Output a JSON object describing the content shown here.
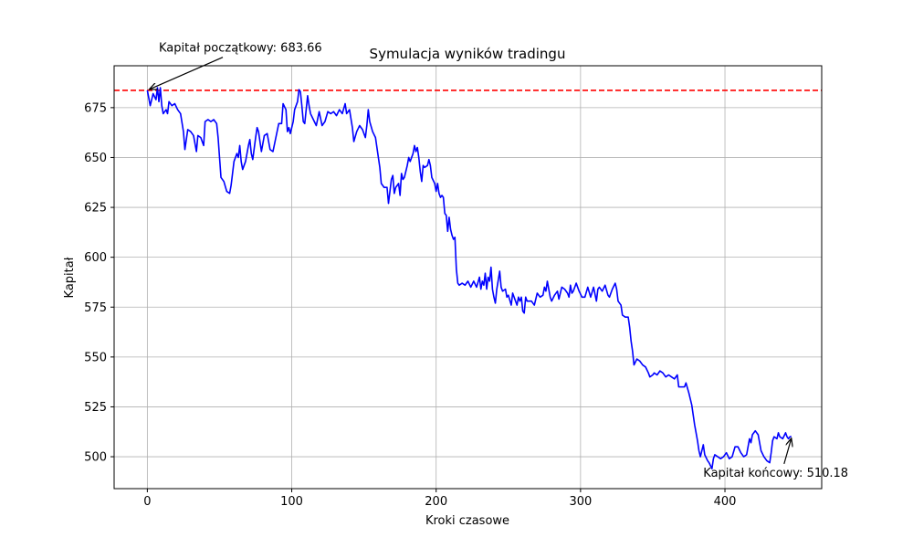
{
  "chart_data": {
    "type": "line",
    "title": "Symulacja wyników tradingu",
    "xlabel": "Kroki czasowe",
    "ylabel": "Kapitał",
    "xlim": [
      -23,
      467
    ],
    "ylim": [
      484,
      696
    ],
    "xticks": [
      0,
      100,
      200,
      300,
      400
    ],
    "yticks": [
      500,
      525,
      550,
      575,
      600,
      625,
      650,
      675
    ],
    "grid": true,
    "colors": {
      "line": "#0000ff",
      "reference": "#ff0000",
      "arrow": "#000000"
    },
    "reference_line": {
      "y": 683.66,
      "style": "dashed"
    },
    "series": [
      {
        "points": [
          [
            0,
            683.66
          ],
          [
            2,
            676
          ],
          [
            4,
            682
          ],
          [
            6,
            679
          ],
          [
            7,
            685
          ],
          [
            8,
            678
          ],
          [
            9,
            685
          ],
          [
            10,
            676
          ],
          [
            11,
            672
          ],
          [
            13,
            674
          ],
          [
            14,
            672
          ],
          [
            15,
            678
          ],
          [
            17,
            676
          ],
          [
            19,
            677
          ],
          [
            21,
            674
          ],
          [
            23,
            672
          ],
          [
            25,
            663
          ],
          [
            26,
            654
          ],
          [
            28,
            664
          ],
          [
            30,
            663
          ],
          [
            32,
            661
          ],
          [
            34,
            653
          ],
          [
            35,
            661
          ],
          [
            37,
            660
          ],
          [
            39,
            656
          ],
          [
            40,
            668
          ],
          [
            42,
            669
          ],
          [
            44,
            668
          ],
          [
            46,
            669
          ],
          [
            48,
            667
          ],
          [
            49,
            660
          ],
          [
            50,
            650
          ],
          [
            51,
            640
          ],
          [
            53,
            638
          ],
          [
            55,
            633
          ],
          [
            57,
            632
          ],
          [
            58,
            636
          ],
          [
            60,
            648
          ],
          [
            62,
            652
          ],
          [
            63,
            650
          ],
          [
            64,
            656
          ],
          [
            65,
            648
          ],
          [
            66,
            644
          ],
          [
            68,
            648
          ],
          [
            70,
            656
          ],
          [
            71,
            659
          ],
          [
            72,
            652
          ],
          [
            73,
            649
          ],
          [
            75,
            660
          ],
          [
            76,
            665
          ],
          [
            77,
            663
          ],
          [
            79,
            653
          ],
          [
            81,
            661
          ],
          [
            83,
            662
          ],
          [
            85,
            654
          ],
          [
            87,
            653
          ],
          [
            89,
            660
          ],
          [
            91,
            667
          ],
          [
            93,
            667
          ],
          [
            94,
            677
          ],
          [
            96,
            674
          ],
          [
            97,
            663
          ],
          [
            98,
            665
          ],
          [
            99,
            662
          ],
          [
            101,
            668
          ],
          [
            102,
            674
          ],
          [
            104,
            678
          ],
          [
            105,
            684
          ],
          [
            106,
            683
          ],
          [
            107,
            676
          ],
          [
            108,
            668
          ],
          [
            109,
            667
          ],
          [
            111,
            681
          ],
          [
            112,
            676
          ],
          [
            113,
            672
          ],
          [
            115,
            669
          ],
          [
            117,
            666
          ],
          [
            119,
            673
          ],
          [
            121,
            666
          ],
          [
            123,
            668
          ],
          [
            125,
            673
          ],
          [
            127,
            672
          ],
          [
            129,
            673
          ],
          [
            131,
            671
          ],
          [
            133,
            674
          ],
          [
            135,
            672
          ],
          [
            137,
            677
          ],
          [
            138,
            672
          ],
          [
            140,
            674
          ],
          [
            142,
            665
          ],
          [
            143,
            658
          ],
          [
            145,
            663
          ],
          [
            147,
            666
          ],
          [
            149,
            664
          ],
          [
            151,
            660
          ],
          [
            152,
            666
          ],
          [
            153,
            674
          ],
          [
            154,
            668
          ],
          [
            156,
            663
          ],
          [
            158,
            660
          ],
          [
            160,
            650
          ],
          [
            161,
            645
          ],
          [
            162,
            637
          ],
          [
            164,
            635
          ],
          [
            166,
            635
          ],
          [
            167,
            627
          ],
          [
            169,
            639
          ],
          [
            170,
            641
          ],
          [
            171,
            632
          ],
          [
            172,
            635
          ],
          [
            174,
            637
          ],
          [
            175,
            631
          ],
          [
            176,
            642
          ],
          [
            177,
            639
          ],
          [
            178,
            640
          ],
          [
            180,
            646
          ],
          [
            181,
            650
          ],
          [
            182,
            648
          ],
          [
            184,
            652
          ],
          [
            185,
            656
          ],
          [
            186,
            653
          ],
          [
            187,
            655
          ],
          [
            188,
            650
          ],
          [
            189,
            643
          ],
          [
            190,
            638
          ],
          [
            191,
            646
          ],
          [
            192,
            645
          ],
          [
            194,
            646
          ],
          [
            195,
            649
          ],
          [
            196,
            646
          ],
          [
            197,
            640
          ],
          [
            199,
            637
          ],
          [
            200,
            633
          ],
          [
            201,
            637
          ],
          [
            202,
            632
          ],
          [
            203,
            630
          ],
          [
            204,
            631
          ],
          [
            205,
            630
          ],
          [
            206,
            622
          ],
          [
            207,
            621
          ],
          [
            208,
            613
          ],
          [
            209,
            620
          ],
          [
            210,
            614
          ],
          [
            211,
            611
          ],
          [
            212,
            609
          ],
          [
            213,
            610
          ],
          [
            214,
            594
          ],
          [
            215,
            587
          ],
          [
            216,
            586
          ],
          [
            218,
            587
          ],
          [
            220,
            586
          ],
          [
            222,
            588
          ],
          [
            224,
            585
          ],
          [
            226,
            588
          ],
          [
            228,
            585
          ],
          [
            230,
            590
          ],
          [
            231,
            584
          ],
          [
            232,
            588
          ],
          [
            233,
            586
          ],
          [
            234,
            592
          ],
          [
            235,
            584
          ],
          [
            236,
            590
          ],
          [
            237,
            588
          ],
          [
            238,
            595
          ],
          [
            239,
            584
          ],
          [
            240,
            580
          ],
          [
            241,
            577
          ],
          [
            242,
            584
          ],
          [
            244,
            593
          ],
          [
            245,
            585
          ],
          [
            246,
            583
          ],
          [
            248,
            584
          ],
          [
            249,
            580
          ],
          [
            250,
            581
          ],
          [
            252,
            576
          ],
          [
            253,
            582
          ],
          [
            254,
            580
          ],
          [
            255,
            578
          ],
          [
            256,
            576
          ],
          [
            257,
            580
          ],
          [
            258,
            578
          ],
          [
            259,
            580
          ],
          [
            260,
            573
          ],
          [
            261,
            572
          ],
          [
            262,
            580
          ],
          [
            263,
            578
          ],
          [
            264,
            578
          ],
          [
            266,
            578
          ],
          [
            268,
            576
          ],
          [
            270,
            582
          ],
          [
            272,
            580
          ],
          [
            274,
            581
          ],
          [
            275,
            585
          ],
          [
            276,
            583
          ],
          [
            277,
            588
          ],
          [
            278,
            584
          ],
          [
            279,
            580
          ],
          [
            280,
            578
          ],
          [
            282,
            581
          ],
          [
            284,
            583
          ],
          [
            285,
            579
          ],
          [
            287,
            585
          ],
          [
            289,
            584
          ],
          [
            291,
            582
          ],
          [
            292,
            580
          ],
          [
            293,
            586
          ],
          [
            294,
            582
          ],
          [
            295,
            583
          ],
          [
            297,
            587
          ],
          [
            299,
            583
          ],
          [
            301,
            580
          ],
          [
            303,
            580
          ],
          [
            305,
            585
          ],
          [
            307,
            580
          ],
          [
            309,
            585
          ],
          [
            311,
            578
          ],
          [
            312,
            584
          ],
          [
            313,
            585
          ],
          [
            315,
            583
          ],
          [
            317,
            586
          ],
          [
            319,
            581
          ],
          [
            320,
            580
          ],
          [
            322,
            584
          ],
          [
            324,
            587
          ],
          [
            325,
            584
          ],
          [
            326,
            578
          ],
          [
            328,
            576
          ],
          [
            329,
            571
          ],
          [
            331,
            570
          ],
          [
            333,
            570
          ],
          [
            334,
            565
          ],
          [
            335,
            558
          ],
          [
            336,
            553
          ],
          [
            337,
            546
          ],
          [
            339,
            549
          ],
          [
            341,
            548
          ],
          [
            343,
            546
          ],
          [
            345,
            545
          ],
          [
            347,
            542
          ],
          [
            348,
            540
          ],
          [
            350,
            541
          ],
          [
            351,
            542
          ],
          [
            353,
            541
          ],
          [
            355,
            543
          ],
          [
            357,
            542
          ],
          [
            359,
            540
          ],
          [
            361,
            541
          ],
          [
            363,
            540
          ],
          [
            365,
            539
          ],
          [
            367,
            541
          ],
          [
            368,
            535
          ],
          [
            370,
            535
          ],
          [
            372,
            535
          ],
          [
            373,
            537
          ],
          [
            375,
            532
          ],
          [
            377,
            526
          ],
          [
            379,
            516
          ],
          [
            381,
            508
          ],
          [
            382,
            503
          ],
          [
            383,
            500
          ],
          [
            385,
            506
          ],
          [
            386,
            501
          ],
          [
            388,
            498
          ],
          [
            389,
            497
          ],
          [
            391,
            494
          ],
          [
            392,
            499
          ],
          [
            393,
            501
          ],
          [
            395,
            500
          ],
          [
            397,
            499
          ],
          [
            399,
            500
          ],
          [
            401,
            502
          ],
          [
            403,
            499
          ],
          [
            405,
            500
          ],
          [
            407,
            505
          ],
          [
            409,
            505
          ],
          [
            411,
            502
          ],
          [
            413,
            500
          ],
          [
            415,
            501
          ],
          [
            417,
            509
          ],
          [
            418,
            507
          ],
          [
            419,
            511
          ],
          [
            421,
            513
          ],
          [
            423,
            511
          ],
          [
            425,
            503
          ],
          [
            427,
            500
          ],
          [
            429,
            498
          ],
          [
            431,
            497
          ],
          [
            432,
            502
          ],
          [
            433,
            508
          ],
          [
            434,
            510
          ],
          [
            436,
            509
          ],
          [
            437,
            512
          ],
          [
            438,
            510
          ],
          [
            440,
            509
          ],
          [
            442,
            512
          ],
          [
            443,
            510
          ],
          [
            444,
            509
          ],
          [
            445,
            510
          ],
          [
            446,
            510.18
          ]
        ]
      }
    ],
    "annotations": [
      {
        "text": "Kapitał początkowy: 683.66",
        "target": [
          0,
          683.66
        ],
        "text_at": [
          8,
          703
        ]
      },
      {
        "text": "Kapitał końcowy: 510.18",
        "target": [
          446,
          510.18
        ],
        "text_at": [
          385,
          490
        ]
      }
    ]
  }
}
